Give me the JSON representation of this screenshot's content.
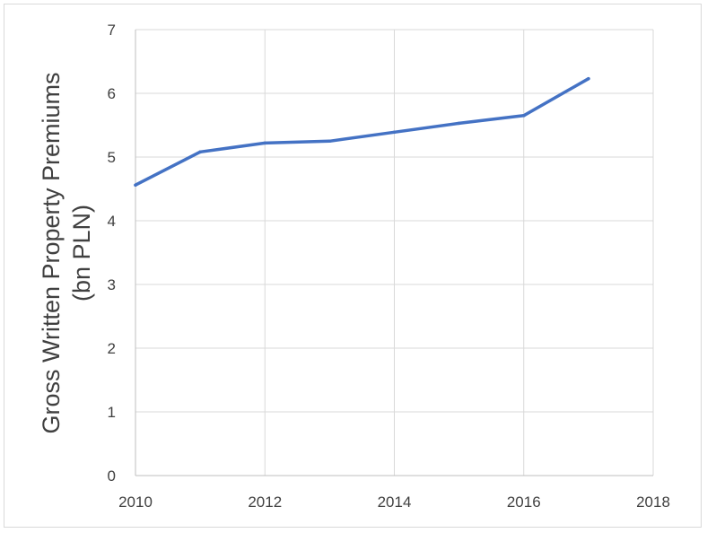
{
  "chart_data": {
    "type": "line",
    "title": "",
    "xlabel": "",
    "ylabel": [
      "Gross Written Property Premiums",
      "(bn PLN)"
    ],
    "xlim": [
      2010,
      2018
    ],
    "ylim": [
      0,
      7
    ],
    "xticks": [
      "2010",
      "2012",
      "2014",
      "2016",
      "2018"
    ],
    "yticks": [
      "0",
      "1",
      "2",
      "3",
      "4",
      "5",
      "6",
      "7"
    ],
    "grid": true,
    "legend": "none",
    "series": [
      {
        "color": "#4472c4",
        "x": [
          2010,
          2011,
          2012,
          2013,
          2014,
          2015,
          2016,
          2017
        ],
        "y": [
          4.56,
          5.08,
          5.22,
          5.25,
          5.39,
          5.53,
          5.65,
          6.23
        ]
      }
    ],
    "colors": {
      "grid": "#d9d9d9",
      "axis": "#bfbfbf",
      "text": "#404040"
    }
  }
}
